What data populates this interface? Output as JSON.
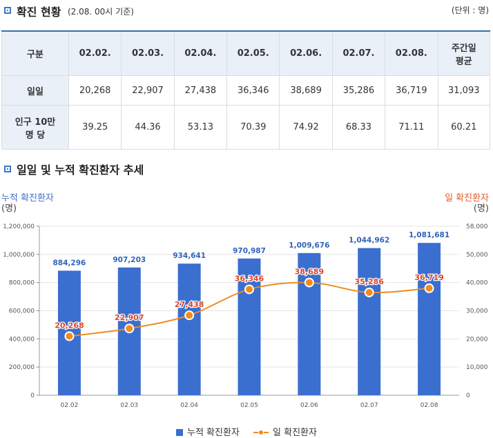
{
  "section1": {
    "title": "확진 현황",
    "note": "(2.08. 00시 기준)",
    "unit": "(단위 : 명)"
  },
  "table": {
    "headers": [
      "구분",
      "02.02.",
      "02.03.",
      "02.04.",
      "02.05.",
      "02.06.",
      "02.07.",
      "02.08."
    ],
    "avg_header_line1": "주간일",
    "avg_header_line2": "평균",
    "rows": [
      {
        "label_line1": "일일",
        "label_line2": "",
        "values": [
          "20,268",
          "22,907",
          "27,438",
          "36,346",
          "38,689",
          "35,286",
          "36,719",
          "31,093"
        ]
      },
      {
        "label_line1": "인구 10만",
        "label_line2": "명 당",
        "values": [
          "39.25",
          "44.36",
          "53.13",
          "70.39",
          "74.92",
          "68.33",
          "71.11",
          "60.21"
        ]
      }
    ]
  },
  "section2": {
    "title": "일일 및 누적 확진환자 추세"
  },
  "colors": {
    "bar": "#3a6fd0",
    "line": "#f08c1c",
    "line_label": "#d8452a",
    "bar_label": "#2f64b8",
    "accent": "#3a78c8"
  },
  "chart_data": {
    "type": "bar",
    "categories": [
      "02.02",
      "02.03",
      "02.04",
      "02.05",
      "02.06",
      "02.07",
      "02.08"
    ],
    "left_axis_title": "누적 확진환자",
    "left_axis_unit": "(명)",
    "right_axis_title": "일 확진환자",
    "right_axis_unit": "(명)",
    "left_ylim": [
      0,
      1200000
    ],
    "left_ticks": [
      "0",
      "200,000",
      "400,000",
      "600,000",
      "800,000",
      "1,000,000",
      "1,200,000"
    ],
    "right_ylim": [
      0,
      58000
    ],
    "right_ticks": [
      "0",
      "10,000",
      "20,000",
      "30,000",
      "40,000",
      "50,000",
      "58,000"
    ],
    "series": [
      {
        "name": "누적 확진환자",
        "type": "bar",
        "axis": "left",
        "values": [
          884296,
          907203,
          934641,
          970987,
          1009676,
          1044962,
          1081681
        ],
        "labels": [
          "884,296",
          "907,203",
          "934,641",
          "970,987",
          "1,009,676",
          "1,044,962",
          "1,081,681"
        ]
      },
      {
        "name": "일 확진환자",
        "type": "line",
        "axis": "right",
        "values": [
          20268,
          22907,
          27438,
          36346,
          38689,
          35286,
          36719
        ],
        "labels": [
          "20,268",
          "22,907",
          "27,438",
          "36,346",
          "38,689",
          "35,286",
          "36,719"
        ]
      }
    ],
    "grid": "horizontal",
    "legend_position": "bottom-center"
  }
}
